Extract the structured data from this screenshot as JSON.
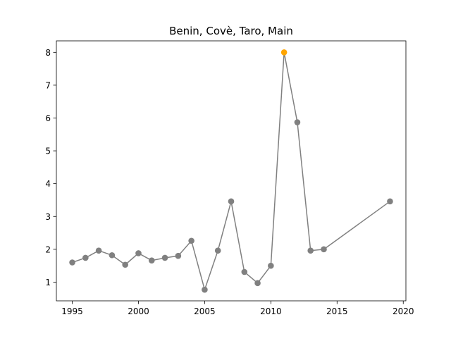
{
  "chart_data": {
    "type": "line",
    "title": "Benin, Covè, Taro, Main",
    "xlabel": "",
    "ylabel": "",
    "xlim": [
      1993.8,
      2020.2
    ],
    "ylim": [
      0.43,
      8.35
    ],
    "xticks": [
      1995,
      2000,
      2005,
      2010,
      2015,
      2020
    ],
    "yticks": [
      1,
      2,
      3,
      4,
      5,
      6,
      7,
      8
    ],
    "grid": false,
    "series": [
      {
        "color": "#808080",
        "highlight_color": "#ffa500",
        "highlight_index": 16,
        "x": [
          1995,
          1996,
          1997,
          1998,
          1999,
          2000,
          2001,
          2002,
          2003,
          2004,
          2005,
          2006,
          2007,
          2008,
          2009,
          2010,
          2011,
          2012,
          2013,
          2014,
          2019
        ],
        "y": [
          1.6,
          1.74,
          1.96,
          1.82,
          1.53,
          1.88,
          1.66,
          1.74,
          1.8,
          2.26,
          0.77,
          1.96,
          3.46,
          1.31,
          0.97,
          1.5,
          8.0,
          5.87,
          1.96,
          2.0,
          3.46
        ]
      }
    ]
  }
}
